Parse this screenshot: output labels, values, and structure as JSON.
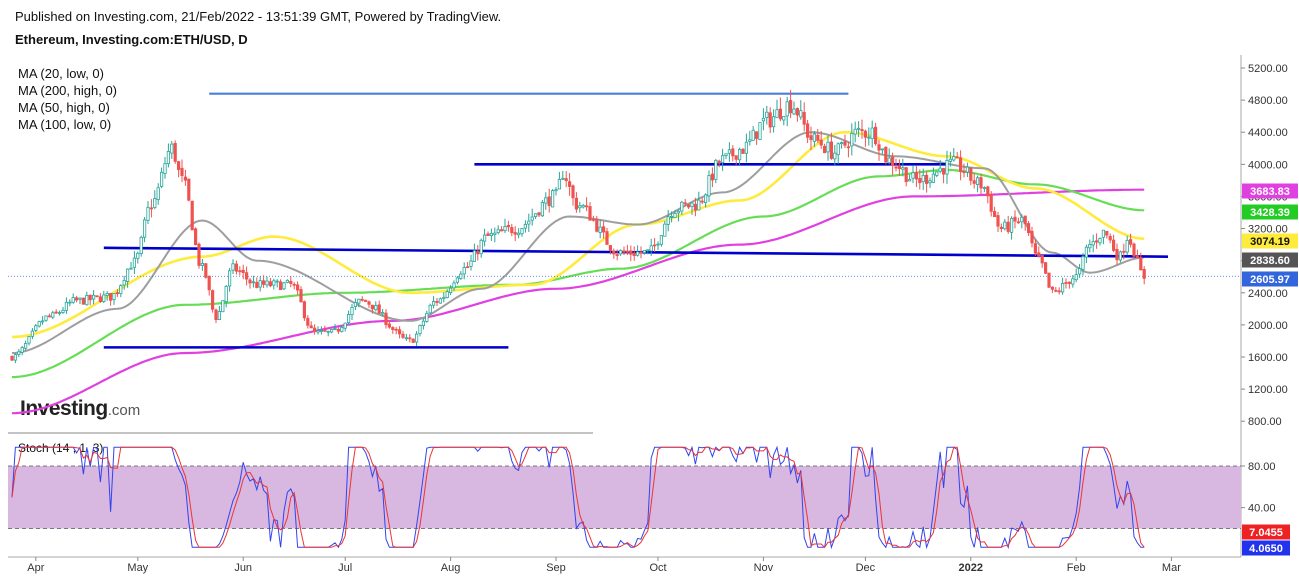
{
  "header": {
    "published": "Published on Investing.com, 21/Feb/2022 - 13:51:39 GMT, Powered by TradingView.",
    "symbol": "Ethereum, Investing.com:ETH/USD, D"
  },
  "logo": {
    "main": "Investing",
    "suffix": ".com"
  },
  "ma_legend": [
    "MA (20, low, 0)",
    "MA (200, high, 0)",
    "MA (50, high, 0)",
    "MA (100, low, 0)"
  ],
  "stoch_label": "Stoch (14 , 1, 3)",
  "colors": {
    "up": "#26a69a",
    "down": "#ef5350",
    "ma20": "#9e9e9e",
    "ma200": "#e040e0",
    "ma50": "#ffeb3b",
    "ma100": "#66dd55",
    "hline": "#0000cc",
    "hline_top": "#4a7fd8",
    "stoch_band": "#d8b8e0"
  },
  "chart_data": [
    {
      "type": "candlestick",
      "ylim": [
        800,
        5200
      ],
      "y_ticks": [
        "5200.00",
        "4800.00",
        "4400.00",
        "4000.00",
        "3600.00",
        "3200.00",
        "2800.00",
        "2400.00",
        "2000.00",
        "1600.00",
        "1200.00",
        "800.00"
      ],
      "x_ticks": [
        "Apr",
        "May",
        "Jun",
        "Jul",
        "Aug",
        "Sep",
        "Oct",
        "Nov",
        "Dec",
        "2022",
        "Feb",
        "Mar"
      ],
      "price_badges": [
        {
          "label": "3683.83",
          "value": 3683.83,
          "color": "#e040e0"
        },
        {
          "label": "3428.39",
          "value": 3428.39,
          "color": "#22cc22"
        },
        {
          "label": "3074.19",
          "value": 3074.19,
          "color": "#ffeb3b"
        },
        {
          "label": "2838.60",
          "value": 2838.6,
          "color": "#555555"
        },
        {
          "label": "2605.97",
          "value": 2605.97,
          "color": "#3366dd"
        }
      ],
      "horizontal_lines": [
        {
          "from": "2021-05-22",
          "to": "2021-11-26",
          "value": 4880
        },
        {
          "from": "2021-08-08",
          "to": "2021-12-25",
          "value": 4000
        },
        {
          "from": "2021-04-21",
          "to": "2022-02-28",
          "value_from": 2960,
          "value_to": 2850
        },
        {
          "from": "2021-04-21",
          "to": "2021-08-18",
          "value": 1720
        }
      ],
      "ohlc_key_points": [
        [
          "2021-03-25",
          1600
        ],
        [
          "2021-04-05",
          2100
        ],
        [
          "2021-04-13",
          2300
        ],
        [
          "2021-04-23",
          2350
        ],
        [
          "2021-04-30",
          2780
        ],
        [
          "2021-05-05",
          3500
        ],
        [
          "2021-05-11",
          4200
        ],
        [
          "2021-05-14",
          3800
        ],
        [
          "2021-05-20",
          2700
        ],
        [
          "2021-05-24",
          2100
        ],
        [
          "2021-05-29",
          2700
        ],
        [
          "2021-06-05",
          2500
        ],
        [
          "2021-06-15",
          2500
        ],
        [
          "2021-06-22",
          1900
        ],
        [
          "2021-06-27",
          1900
        ],
        [
          "2021-07-06",
          2300
        ],
        [
          "2021-07-20",
          1800
        ],
        [
          "2021-07-28",
          2300
        ],
        [
          "2021-08-05",
          2700
        ],
        [
          "2021-08-12",
          3100
        ],
        [
          "2021-08-20",
          3200
        ],
        [
          "2021-09-01",
          3600
        ],
        [
          "2021-09-03",
          3900
        ],
        [
          "2021-09-07",
          3500
        ],
        [
          "2021-09-20",
          2900
        ],
        [
          "2021-09-28",
          2900
        ],
        [
          "2021-10-06",
          3450
        ],
        [
          "2021-10-12",
          3500
        ],
        [
          "2021-10-20",
          4050
        ],
        [
          "2021-10-26",
          4200
        ],
        [
          "2021-11-02",
          4550
        ],
        [
          "2021-11-09",
          4750
        ],
        [
          "2021-11-16",
          4300
        ],
        [
          "2021-11-22",
          4150
        ],
        [
          "2021-11-29",
          4400
        ],
        [
          "2021-12-03",
          4400
        ],
        [
          "2021-12-08",
          4050
        ],
        [
          "2021-12-16",
          3800
        ],
        [
          "2021-12-27",
          4000
        ],
        [
          "2022-01-04",
          3750
        ],
        [
          "2022-01-10",
          3200
        ],
        [
          "2022-01-16",
          3300
        ],
        [
          "2022-01-21",
          2800
        ],
        [
          "2022-01-25",
          2400
        ],
        [
          "2022-02-01",
          2600
        ],
        [
          "2022-02-05",
          3000
        ],
        [
          "2022-02-09",
          3150
        ],
        [
          "2022-02-14",
          2850
        ],
        [
          "2022-02-16",
          3100
        ],
        [
          "2022-02-21",
          2600
        ]
      ],
      "ma_key_points": {
        "ma20": [
          [
            "2021-03-25",
            1650
          ],
          [
            "2021-04-25",
            2200
          ],
          [
            "2021-05-20",
            3300
          ],
          [
            "2021-06-05",
            2800
          ],
          [
            "2021-07-20",
            2050
          ],
          [
            "2021-08-10",
            2450
          ],
          [
            "2021-09-05",
            3350
          ],
          [
            "2021-09-25",
            3250
          ],
          [
            "2021-10-20",
            3650
          ],
          [
            "2021-11-15",
            4400
          ],
          [
            "2021-12-10",
            4100
          ],
          [
            "2022-01-05",
            3950
          ],
          [
            "2022-01-25",
            2900
          ],
          [
            "2022-02-05",
            2650
          ],
          [
            "2022-02-21",
            2840
          ]
        ],
        "ma200": [
          [
            "2021-03-25",
            900
          ],
          [
            "2021-05-15",
            1650
          ],
          [
            "2021-07-15",
            2050
          ],
          [
            "2021-09-01",
            2450
          ],
          [
            "2021-10-25",
            3000
          ],
          [
            "2021-12-15",
            3600
          ],
          [
            "2022-02-21",
            3684
          ]
        ],
        "ma50": [
          [
            "2021-03-25",
            1850
          ],
          [
            "2021-05-20",
            2850
          ],
          [
            "2021-06-10",
            3100
          ],
          [
            "2021-07-20",
            2400
          ],
          [
            "2021-08-25",
            2500
          ],
          [
            "2021-09-25",
            3250
          ],
          [
            "2021-10-25",
            3550
          ],
          [
            "2021-11-25",
            4400
          ],
          [
            "2021-12-25",
            4100
          ],
          [
            "2022-01-20",
            3700
          ],
          [
            "2022-02-21",
            3074
          ]
        ],
        "ma100": [
          [
            "2021-03-25",
            1350
          ],
          [
            "2021-05-15",
            2250
          ],
          [
            "2021-07-01",
            2400
          ],
          [
            "2021-08-20",
            2500
          ],
          [
            "2021-09-20",
            2700
          ],
          [
            "2021-11-01",
            3350
          ],
          [
            "2021-12-05",
            3850
          ],
          [
            "2021-12-25",
            3930
          ],
          [
            "2022-01-20",
            3750
          ],
          [
            "2022-02-21",
            3428
          ]
        ]
      }
    },
    {
      "type": "stochastic",
      "ylim": [
        0,
        100
      ],
      "y_ticks": [
        "80.00",
        "40.00"
      ],
      "band": [
        20,
        80
      ],
      "value_badges": [
        {
          "label": "7.0455",
          "value": 7.0455,
          "color": "#ee2222"
        },
        {
          "label": "4.0650",
          "value": 4.065,
          "color": "#2233ee"
        }
      ]
    }
  ]
}
